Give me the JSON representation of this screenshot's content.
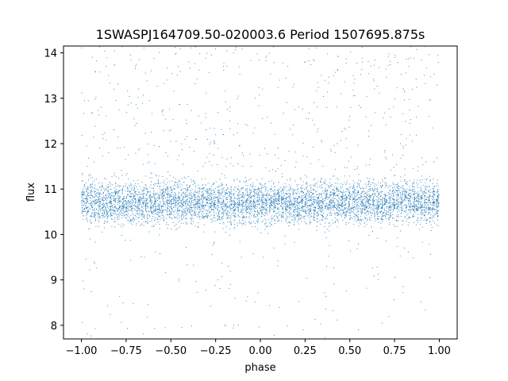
{
  "chart_data": {
    "type": "scatter",
    "title": "1SWASPJ164709.50-020003.6 Period 1507695.875s",
    "xlabel": "phase",
    "ylabel": "flux",
    "xlim": [
      -1.1,
      1.1
    ],
    "ylim": [
      7.7,
      14.15
    ],
    "x_ticks": [
      {
        "value": -1.0,
        "label": "−1.00"
      },
      {
        "value": -0.75,
        "label": "−0.75"
      },
      {
        "value": -0.5,
        "label": "−0.50"
      },
      {
        "value": -0.25,
        "label": "−0.25"
      },
      {
        "value": 0.0,
        "label": "0.00"
      },
      {
        "value": 0.25,
        "label": "0.25"
      },
      {
        "value": 0.5,
        "label": "0.50"
      },
      {
        "value": 0.75,
        "label": "0.75"
      },
      {
        "value": 1.0,
        "label": "1.00"
      }
    ],
    "y_ticks": [
      {
        "value": 8,
        "label": "8"
      },
      {
        "value": 9,
        "label": "9"
      },
      {
        "value": 10,
        "label": "10"
      },
      {
        "value": 11,
        "label": "11"
      },
      {
        "value": 12,
        "label": "12"
      },
      {
        "value": 13,
        "label": "13"
      },
      {
        "value": 14,
        "label": "14"
      }
    ],
    "grid": false,
    "marker_color": "#1f77b4",
    "series": [
      {
        "baseline_flux": 10.7,
        "points": [
          [
            -0.97,
            11.95
          ],
          [
            -0.96,
            11.2
          ],
          [
            -0.95,
            10.4
          ],
          [
            -0.93,
            11.6
          ],
          [
            -0.91,
            10.9
          ],
          [
            -0.89,
            12.8
          ],
          [
            -0.87,
            10.3
          ],
          [
            -0.85,
            11.1
          ],
          [
            -0.82,
            10.6
          ],
          [
            -0.8,
            11.9
          ],
          [
            -0.78,
            10.5
          ],
          [
            -0.75,
            11.3
          ],
          [
            -0.73,
            10.7
          ],
          [
            -0.7,
            12.4
          ],
          [
            -0.68,
            13.2
          ],
          [
            -0.65,
            10.9
          ],
          [
            -0.62,
            11.6
          ],
          [
            -0.6,
            10.4
          ],
          [
            -0.57,
            11.2
          ],
          [
            -0.55,
            12.7
          ],
          [
            -0.52,
            13.4
          ],
          [
            -0.5,
            12.3
          ],
          [
            -0.48,
            11.0
          ],
          [
            -0.46,
            13.7
          ],
          [
            -0.44,
            10.6
          ],
          [
            -0.42,
            12.1
          ],
          [
            -0.4,
            13.8
          ],
          [
            -0.38,
            10.8
          ],
          [
            -0.35,
            11.4
          ],
          [
            -0.32,
            10.5
          ],
          [
            -0.3,
            11.7
          ],
          [
            -0.27,
            10.9
          ],
          [
            -0.25,
            12.2
          ],
          [
            -0.22,
            10.6
          ],
          [
            -0.2,
            11.3
          ],
          [
            -0.18,
            9.3
          ],
          [
            -0.15,
            11.0
          ],
          [
            -0.12,
            10.4
          ],
          [
            -0.1,
            11.8
          ],
          [
            -0.07,
            10.7
          ],
          [
            -0.05,
            11.5
          ],
          [
            -0.02,
            10.3
          ],
          [
            0.0,
            11.1
          ],
          [
            0.02,
            10.6
          ],
          [
            0.05,
            11.4
          ],
          [
            0.08,
            10.5
          ],
          [
            0.1,
            11.9
          ],
          [
            0.13,
            10.8
          ],
          [
            0.15,
            11.2
          ],
          [
            0.18,
            10.4
          ],
          [
            0.2,
            11.6
          ],
          [
            0.22,
            10.7
          ],
          [
            0.25,
            11.3
          ],
          [
            0.28,
            10.5
          ],
          [
            0.3,
            12.9
          ],
          [
            0.33,
            10.9
          ],
          [
            0.35,
            11.5
          ],
          [
            0.38,
            10.6
          ],
          [
            0.4,
            11.1
          ],
          [
            0.43,
            12.0
          ],
          [
            0.45,
            13.1
          ],
          [
            0.48,
            10.8
          ],
          [
            0.5,
            12.6
          ],
          [
            0.52,
            13.5
          ],
          [
            0.55,
            11.2
          ],
          [
            0.57,
            13.8
          ],
          [
            0.6,
            10.7
          ],
          [
            0.62,
            12.4
          ],
          [
            0.65,
            11.0
          ],
          [
            0.67,
            10.5
          ],
          [
            0.7,
            11.7
          ],
          [
            0.72,
            10.9
          ],
          [
            0.75,
            11.3
          ],
          [
            0.78,
            10.6
          ],
          [
            0.8,
            11.9
          ],
          [
            0.83,
            13.7
          ],
          [
            0.85,
            10.8
          ],
          [
            0.88,
            11.4
          ],
          [
            0.9,
            10.5
          ],
          [
            0.93,
            11.2
          ],
          [
            0.95,
            10.7
          ],
          [
            0.97,
            11.6
          ],
          [
            0.99,
            10.4
          ]
        ]
      }
    ]
  }
}
